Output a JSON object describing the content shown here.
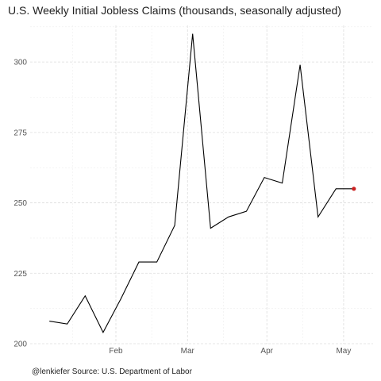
{
  "chart_data": {
    "type": "line",
    "title": "U.S. Weekly Initial Jobless Claims (thousands, seasonally adjusted)",
    "caption": "@lenkiefer Source: U.S. Department of Labor",
    "xlabel": "",
    "ylabel": "",
    "x": [
      "2018-01-06",
      "2018-01-13",
      "2018-01-20",
      "2018-01-27",
      "2018-02-03",
      "2018-02-10",
      "2018-02-17",
      "2018-02-24",
      "2018-03-03",
      "2018-03-10",
      "2018-03-17",
      "2018-03-24",
      "2018-03-31",
      "2018-04-07",
      "2018-04-14",
      "2018-04-21",
      "2018-04-28",
      "2018-05-05"
    ],
    "values": [
      208,
      207,
      217,
      204,
      216,
      229,
      229,
      242,
      310,
      241,
      245,
      247,
      259,
      257,
      299,
      245,
      255,
      255
    ],
    "highlight_last_point": true,
    "line_color": "#000000",
    "highlight_color": "#cc2222",
    "ylim": [
      200,
      313
    ],
    "yticks": [
      200,
      225,
      250,
      275,
      300
    ],
    "ytick_labels": [
      "200",
      "225",
      "250",
      "275",
      "300"
    ],
    "xticks": [
      "2018-02-01",
      "2018-03-01",
      "2018-04-01",
      "2018-05-01"
    ],
    "xtick_labels": [
      "Feb",
      "Mar",
      "Apr",
      "May"
    ],
    "grid": true,
    "legend": "none"
  }
}
